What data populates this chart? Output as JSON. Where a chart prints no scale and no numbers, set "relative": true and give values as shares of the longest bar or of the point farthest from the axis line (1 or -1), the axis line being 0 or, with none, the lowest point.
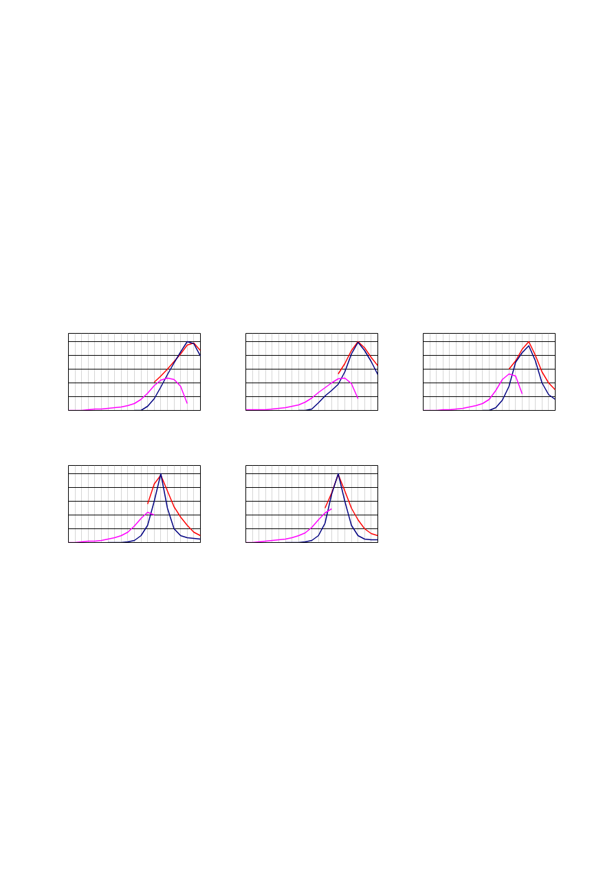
{
  "chart_data": [
    {
      "type": "line",
      "relative": true,
      "grid": true,
      "marker": "none",
      "line_style": "solid",
      "categories": [
        null,
        null,
        null,
        null,
        null,
        null,
        null,
        null,
        null,
        null,
        null,
        null,
        null,
        null,
        null,
        null,
        null,
        null,
        null,
        null,
        null
      ],
      "series": [
        {
          "color": "#ff0000",
          "values": [
            null,
            null,
            null,
            null,
            null,
            null,
            null,
            null,
            null,
            null,
            null,
            null,
            null,
            0.41,
            0.5,
            0.6,
            0.71,
            0.82,
            0.95,
            0.98,
            0.87
          ]
        },
        {
          "color": "#000080",
          "values": [
            null,
            null,
            null,
            null,
            null,
            null,
            null,
            null,
            null,
            null,
            0,
            0,
            0.06,
            0.17,
            0.34,
            0.52,
            0.69,
            0.85,
            1.0,
            0.97,
            0.79
          ]
        },
        {
          "color": "#ff00ff",
          "values": [
            0,
            0,
            0,
            0.01,
            0.02,
            0.02,
            0.03,
            0.04,
            0.05,
            0.07,
            0.1,
            0.16,
            0.25,
            0.36,
            0.44,
            0.47,
            0.45,
            0.35,
            0.1,
            null,
            null
          ]
        }
      ]
    },
    {
      "type": "line",
      "relative": true,
      "grid": true,
      "marker": "none",
      "line_style": "solid",
      "categories": [
        null,
        null,
        null,
        null,
        null,
        null,
        null,
        null,
        null,
        null,
        null,
        null,
        null,
        null,
        null,
        null,
        null,
        null,
        null,
        null,
        null
      ],
      "series": [
        {
          "color": "#ff0000",
          "values": [
            null,
            null,
            null,
            null,
            null,
            null,
            null,
            null,
            null,
            null,
            null,
            null,
            null,
            null,
            0.53,
            0.68,
            0.87,
            1.0,
            0.91,
            0.77,
            0.65
          ]
        },
        {
          "color": "#000080",
          "values": [
            null,
            null,
            null,
            null,
            null,
            null,
            null,
            null,
            0,
            0,
            0.02,
            0.11,
            0.21,
            0.29,
            0.38,
            0.56,
            0.82,
            0.99,
            0.87,
            0.71,
            0.52
          ]
        },
        {
          "color": "#ff00ff",
          "values": [
            0.01,
            0.01,
            0.01,
            0.01,
            0.02,
            0.03,
            0.04,
            0.06,
            0.08,
            0.12,
            0.18,
            0.26,
            0.33,
            0.4,
            0.46,
            0.47,
            0.39,
            0.17,
            null,
            null,
            null
          ]
        }
      ]
    },
    {
      "type": "line",
      "relative": true,
      "grid": true,
      "marker": "none",
      "line_style": "solid",
      "categories": [
        null,
        null,
        null,
        null,
        null,
        null,
        null,
        null,
        null,
        null,
        null,
        null,
        null,
        null,
        null,
        null,
        null,
        null,
        null,
        null,
        null
      ],
      "series": [
        {
          "color": "#ff0000",
          "values": [
            null,
            null,
            null,
            null,
            null,
            null,
            null,
            null,
            null,
            null,
            null,
            null,
            null,
            0.6,
            0.72,
            0.89,
            1.0,
            0.8,
            0.56,
            0.4,
            0.3
          ]
        },
        {
          "color": "#000080",
          "values": [
            null,
            null,
            null,
            null,
            null,
            null,
            null,
            null,
            null,
            0,
            0,
            0.04,
            0.15,
            0.35,
            0.7,
            0.84,
            0.94,
            0.72,
            0.4,
            0.23,
            0.16
          ]
        },
        {
          "color": "#ff00ff",
          "values": [
            0,
            0,
            0,
            0.01,
            0.01,
            0.02,
            0.03,
            0.05,
            0.07,
            0.1,
            0.16,
            0.29,
            0.45,
            0.53,
            0.5,
            0.24,
            null,
            null,
            null,
            null,
            null
          ]
        }
      ]
    },
    {
      "type": "line",
      "relative": true,
      "grid": true,
      "marker": "none",
      "line_style": "solid",
      "categories": [
        null,
        null,
        null,
        null,
        null,
        null,
        null,
        null,
        null,
        null,
        null,
        null,
        null,
        null,
        null,
        null,
        null,
        null,
        null,
        null,
        null
      ],
      "series": [
        {
          "color": "#ff0000",
          "values": [
            null,
            null,
            null,
            null,
            null,
            null,
            null,
            null,
            null,
            null,
            null,
            null,
            0.56,
            0.85,
            0.98,
            0.75,
            0.52,
            0.37,
            0.25,
            0.15,
            0.1
          ]
        },
        {
          "color": "#000080",
          "values": [
            null,
            null,
            null,
            null,
            null,
            null,
            0,
            0,
            0,
            0.01,
            0.03,
            0.1,
            0.25,
            0.6,
            1.0,
            0.5,
            0.2,
            0.1,
            0.07,
            0.06,
            0.05
          ]
        },
        {
          "color": "#ff00ff",
          "values": [
            0,
            0,
            0.01,
            0.02,
            0.02,
            0.03,
            0.05,
            0.07,
            0.1,
            0.15,
            0.24,
            0.35,
            0.44,
            0.4,
            null,
            null,
            null,
            null,
            null,
            null,
            null
          ]
        }
      ]
    },
    {
      "type": "line",
      "relative": true,
      "grid": true,
      "marker": "none",
      "line_style": "solid",
      "categories": [
        null,
        null,
        null,
        null,
        null,
        null,
        null,
        null,
        null,
        null,
        null,
        null,
        null,
        null,
        null,
        null,
        null,
        null,
        null,
        null,
        null
      ],
      "series": [
        {
          "color": "#ff0000",
          "values": [
            null,
            null,
            null,
            null,
            null,
            null,
            null,
            null,
            null,
            null,
            null,
            null,
            0.5,
            0.72,
            0.99,
            0.75,
            0.5,
            0.33,
            0.2,
            0.13,
            0.1
          ]
        },
        {
          "color": "#000080",
          "values": [
            null,
            null,
            null,
            null,
            null,
            null,
            0,
            0,
            0,
            0.01,
            0.03,
            0.1,
            0.28,
            0.7,
            1.0,
            0.6,
            0.25,
            0.1,
            0.05,
            0.04,
            0.04
          ]
        },
        {
          "color": "#ff00ff",
          "values": [
            0,
            0,
            0.01,
            0.02,
            0.03,
            0.04,
            0.05,
            0.07,
            0.1,
            0.14,
            0.22,
            0.33,
            0.43,
            0.49,
            null,
            null,
            null,
            null,
            null,
            null,
            null
          ]
        }
      ]
    }
  ]
}
